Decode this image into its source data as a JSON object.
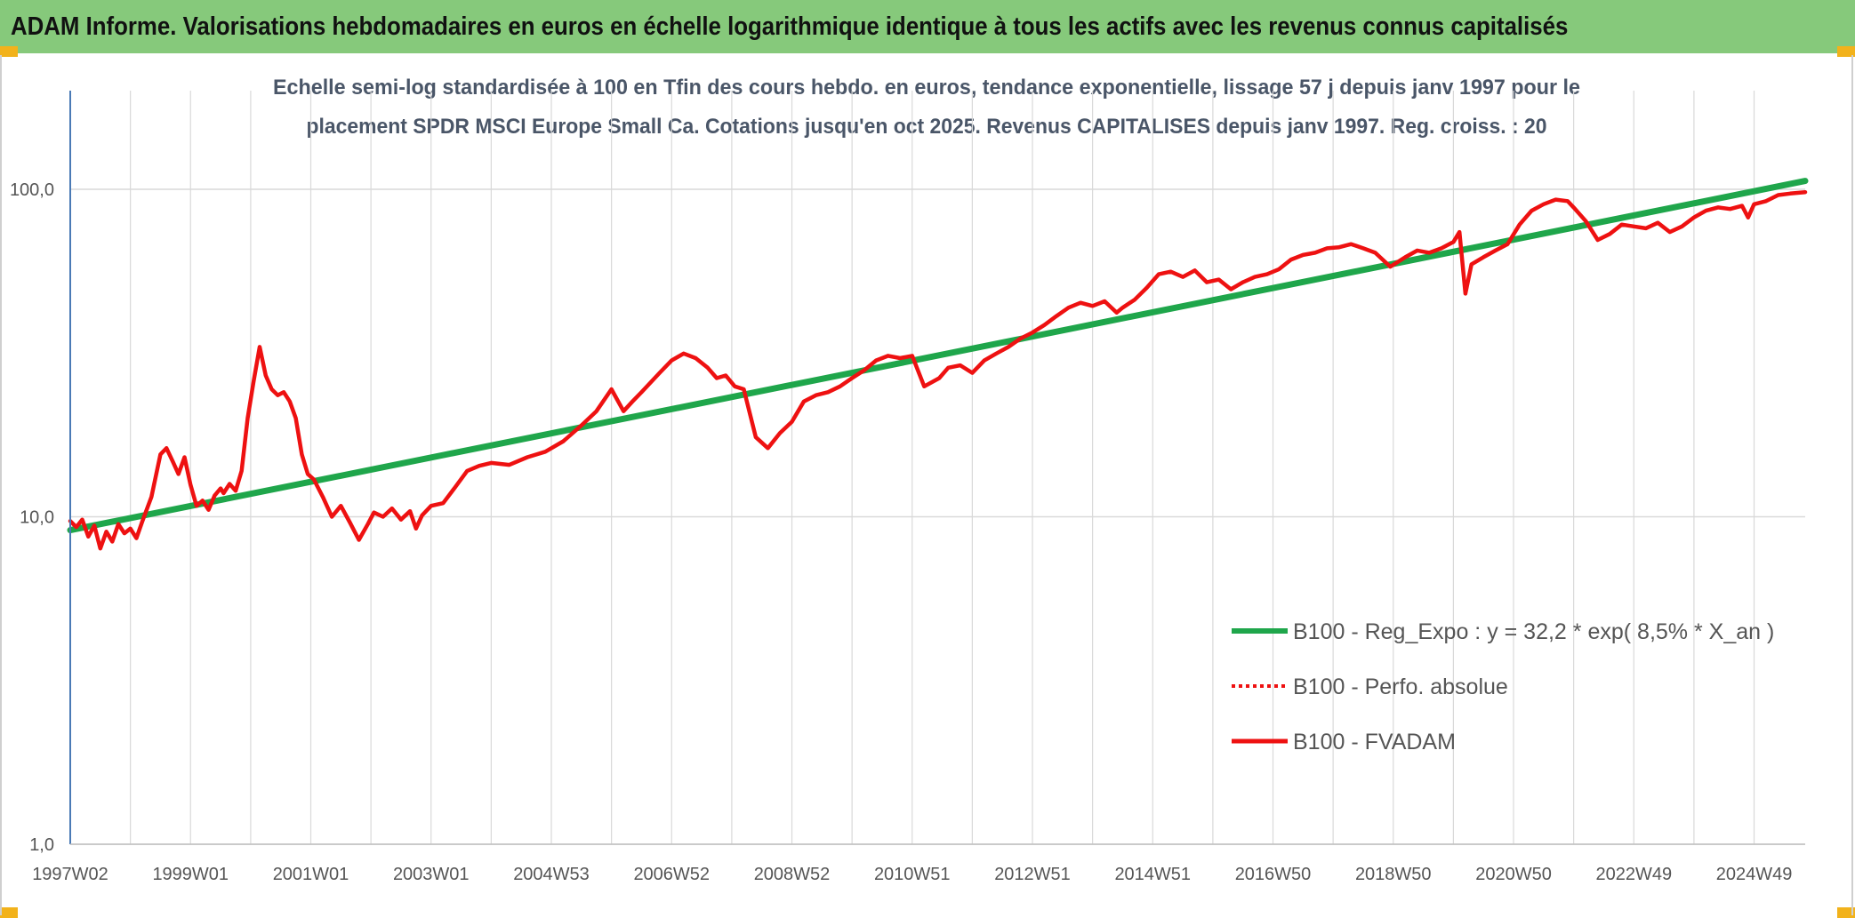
{
  "header": {
    "title": "ADAM Informe. Valorisations hebdomadaires en euros en échelle logarithmique identique à tous les actifs avec les revenus connus capitalisés"
  },
  "colors": {
    "banner": "#86c97b",
    "corner": "#f2b21b",
    "trend": "#1fa64b",
    "price": "#ee1111",
    "grid": "#d9d9d9",
    "axis": "#4a7ab5"
  },
  "chart_data": {
    "type": "line",
    "title_lines": [
      "Echelle semi-log standardisée à 100 en Tfin des cours hebdo. en euros, tendance exponentielle, lissage 57 j depuis janv 1997 pour le",
      "placement SPDR MSCI Europe Small Ca. Cotations jusqu'en oct 2025. Revenus CAPITALISES depuis janv 1997. Reg. croiss. : 20"
    ],
    "y_scale": "log",
    "ylim": [
      1,
      200
    ],
    "y_ticks": [
      {
        "value": 1,
        "label": "1,0"
      },
      {
        "value": 10,
        "label": "10,0"
      },
      {
        "value": 100,
        "label": "100,0"
      }
    ],
    "xlim": [
      1997.0,
      2025.85
    ],
    "x_tick_labels": [
      "1997W02",
      "1999W01",
      "2001W01",
      "2003W01",
      "2004W53",
      "2006W52",
      "2008W52",
      "2010W51",
      "2012W51",
      "2014W51",
      "2016W50",
      "2018W50",
      "2020W50",
      "2022W49",
      "2024W49"
    ],
    "x_ticks": [
      1997.0,
      1999.0,
      2001.0,
      2003.0,
      2005.0,
      2007.0,
      2009.0,
      2011.0,
      2013.0,
      2015.0,
      2017.0,
      2019.0,
      2021.0,
      2023.0,
      2025.0
    ],
    "grid": true,
    "legend_position": "lower-right",
    "series": [
      {
        "name": "B100 - Reg_Expo : y = 32,2 * exp( 8,5% *  X_an )",
        "color": "#1fa64b",
        "style": "solid",
        "x": [
          1997.0,
          2025.85
        ],
        "y": [
          9.1,
          106
        ]
      },
      {
        "name": "B100 - Perfo. absolue",
        "color": "#ee1111",
        "style": "dotted",
        "x": [],
        "y": []
      },
      {
        "name": "B100 - FVADAM",
        "color": "#ee1111",
        "style": "solid",
        "x": [
          1997.0,
          1997.1,
          1997.2,
          1997.3,
          1997.4,
          1997.5,
          1997.6,
          1997.7,
          1997.8,
          1997.9,
          1998.0,
          1998.1,
          1998.2,
          1998.35,
          1998.5,
          1998.6,
          1998.7,
          1998.8,
          1998.9,
          1999.0,
          1999.1,
          1999.2,
          1999.3,
          1999.4,
          1999.5,
          1999.55,
          1999.65,
          1999.75,
          1999.85,
          1999.95,
          2000.05,
          2000.15,
          2000.25,
          2000.35,
          2000.45,
          2000.55,
          2000.65,
          2000.75,
          2000.85,
          2000.95,
          2001.05,
          2001.2,
          2001.35,
          2001.5,
          2001.65,
          2001.8,
          2001.95,
          2002.05,
          2002.2,
          2002.35,
          2002.5,
          2002.65,
          2002.75,
          2002.85,
          2003.0,
          2003.2,
          2003.4,
          2003.6,
          2003.8,
          2004.0,
          2004.3,
          2004.6,
          2004.9,
          2005.2,
          2005.5,
          2005.75,
          2006.0,
          2006.2,
          2006.35,
          2006.5,
          2006.8,
          2007.0,
          2007.2,
          2007.4,
          2007.6,
          2007.75,
          2007.9,
          2008.05,
          2008.2,
          2008.4,
          2008.6,
          2008.8,
          2009.0,
          2009.2,
          2009.4,
          2009.6,
          2009.8,
          2010.0,
          2010.2,
          2010.4,
          2010.6,
          2010.8,
          2011.0,
          2011.2,
          2011.45,
          2011.6,
          2011.8,
          2012.0,
          2012.2,
          2012.4,
          2012.6,
          2012.8,
          2013.0,
          2013.2,
          2013.4,
          2013.6,
          2013.8,
          2014.0,
          2014.2,
          2014.4,
          2014.5,
          2014.7,
          2014.9,
          2015.1,
          2015.3,
          2015.5,
          2015.7,
          2015.9,
          2016.1,
          2016.3,
          2016.5,
          2016.7,
          2016.9,
          2017.1,
          2017.3,
          2017.5,
          2017.7,
          2017.9,
          2018.1,
          2018.3,
          2018.5,
          2018.7,
          2018.95,
          2019.2,
          2019.4,
          2019.6,
          2019.8,
          2020.0,
          2020.1,
          2020.2,
          2020.3,
          2020.5,
          2020.7,
          2020.9,
          2021.1,
          2021.3,
          2021.5,
          2021.7,
          2021.9,
          2022.0,
          2022.2,
          2022.4,
          2022.6,
          2022.8,
          2023.0,
          2023.2,
          2023.4,
          2023.6,
          2023.8,
          2024.0,
          2024.2,
          2024.4,
          2024.6,
          2024.8,
          2024.9,
          2025.0,
          2025.2,
          2025.4,
          2025.6,
          2025.85
        ],
        "y": [
          9.7,
          9.3,
          9.8,
          8.7,
          9.4,
          8.0,
          9.0,
          8.4,
          9.5,
          8.9,
          9.2,
          8.6,
          9.7,
          11.5,
          15.5,
          16.2,
          14.8,
          13.5,
          15.2,
          12.5,
          10.8,
          11.2,
          10.5,
          11.6,
          12.2,
          11.8,
          12.6,
          12.0,
          13.8,
          20.0,
          26.0,
          33.0,
          27.0,
          24.5,
          23.5,
          24.0,
          22.5,
          20.0,
          15.5,
          13.5,
          13.0,
          11.5,
          10.0,
          10.8,
          9.6,
          8.5,
          9.5,
          10.3,
          10.0,
          10.6,
          9.8,
          10.4,
          9.2,
          10.1,
          10.8,
          11.0,
          12.3,
          13.8,
          14.3,
          14.6,
          14.4,
          15.2,
          15.8,
          17.0,
          19.0,
          21.0,
          24.5,
          21.0,
          22.5,
          24.0,
          27.5,
          30.0,
          31.5,
          30.5,
          28.5,
          26.5,
          27.0,
          25.0,
          24.5,
          17.5,
          16.2,
          18.0,
          19.5,
          22.5,
          23.5,
          24.0,
          25.0,
          26.5,
          28.0,
          30.0,
          31.0,
          30.5,
          31.0,
          25.0,
          26.5,
          28.5,
          29.0,
          27.5,
          30.0,
          31.5,
          33.0,
          35.0,
          36.5,
          38.5,
          41.0,
          43.5,
          45.0,
          44.0,
          45.5,
          42.0,
          43.5,
          46.0,
          50.0,
          55.0,
          56.0,
          54.0,
          56.5,
          52.0,
          53.0,
          49.5,
          52.0,
          54.0,
          55.0,
          57.0,
          61.0,
          63.0,
          64.0,
          66.0,
          66.5,
          68.0,
          66.0,
          64.0,
          58.0,
          62.0,
          65.0,
          64.0,
          66.0,
          69.0,
          74.0,
          48.0,
          59.0,
          62.0,
          65.0,
          68.0,
          78.0,
          86.0,
          90.0,
          93.0,
          92.0,
          88.0,
          80.0,
          70.0,
          73.0,
          78.0,
          77.0,
          76.0,
          79.0,
          74.0,
          77.0,
          82.0,
          86.0,
          88.0,
          87.0,
          89.0,
          82.0,
          90.0,
          92.0,
          96.0,
          97.0,
          98.0
        ]
      }
    ]
  }
}
